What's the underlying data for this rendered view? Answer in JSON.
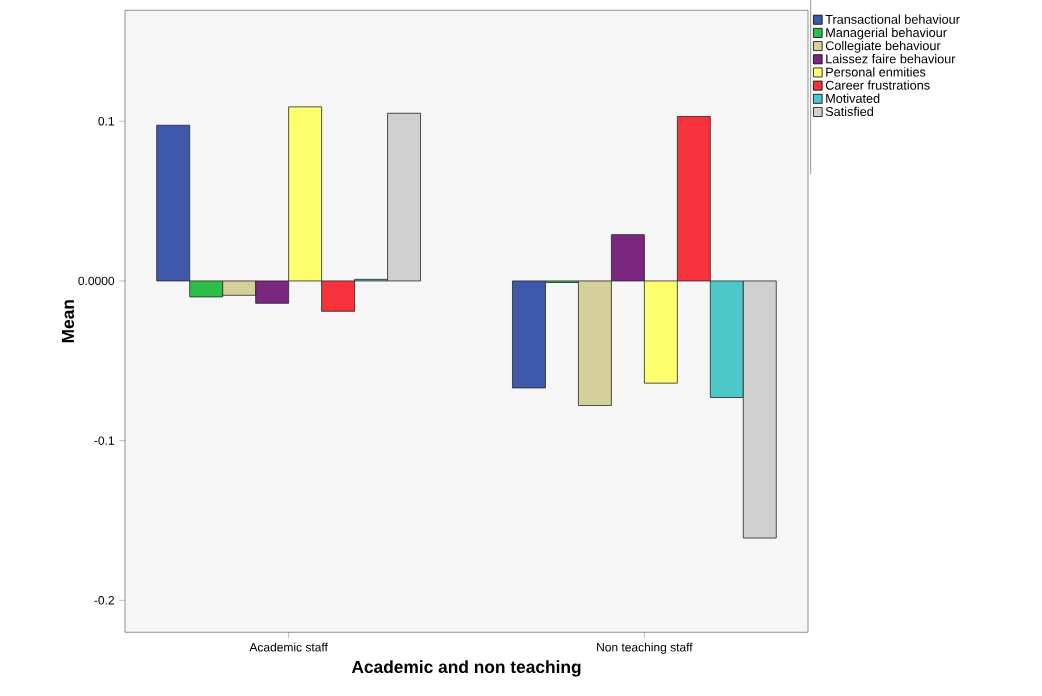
{
  "chart_data": {
    "type": "bar",
    "xlabel": "Academic and non teaching",
    "ylabel": "Mean",
    "categories": [
      "Academic staff",
      "Non teaching staff"
    ],
    "series": [
      {
        "name": "Transactional behaviour",
        "color": "#3e58ac",
        "values": [
          0.0975,
          -0.067
        ]
      },
      {
        "name": "Managerial behaviour",
        "color": "#2cbf4a",
        "values": [
          -0.01,
          -0.001
        ]
      },
      {
        "name": "Collegiate behaviour",
        "color": "#d5d09a",
        "values": [
          -0.009,
          -0.078
        ]
      },
      {
        "name": "Laissez faire behaviour",
        "color": "#7b267f",
        "values": [
          -0.014,
          0.029
        ]
      },
      {
        "name": "Personal enmities",
        "color": "#ffff6e",
        "values": [
          0.109,
          -0.064
        ]
      },
      {
        "name": "Career frustrations",
        "color": "#f7323a",
        "values": [
          -0.019,
          0.103
        ]
      },
      {
        "name": "Motivated",
        "color": "#4cc8c8",
        "values": [
          0.001,
          -0.073
        ]
      },
      {
        "name": "Satisfied",
        "color": "#d0d0d0",
        "values": [
          0.105,
          -0.161
        ]
      }
    ],
    "ylim": [
      -0.22,
      0.1695
    ],
    "yticks": [
      -0.2,
      -0.1,
      {
        "value": 0,
        "label": "0.0000"
      },
      0.1
    ],
    "grid": false,
    "legend": "right"
  }
}
